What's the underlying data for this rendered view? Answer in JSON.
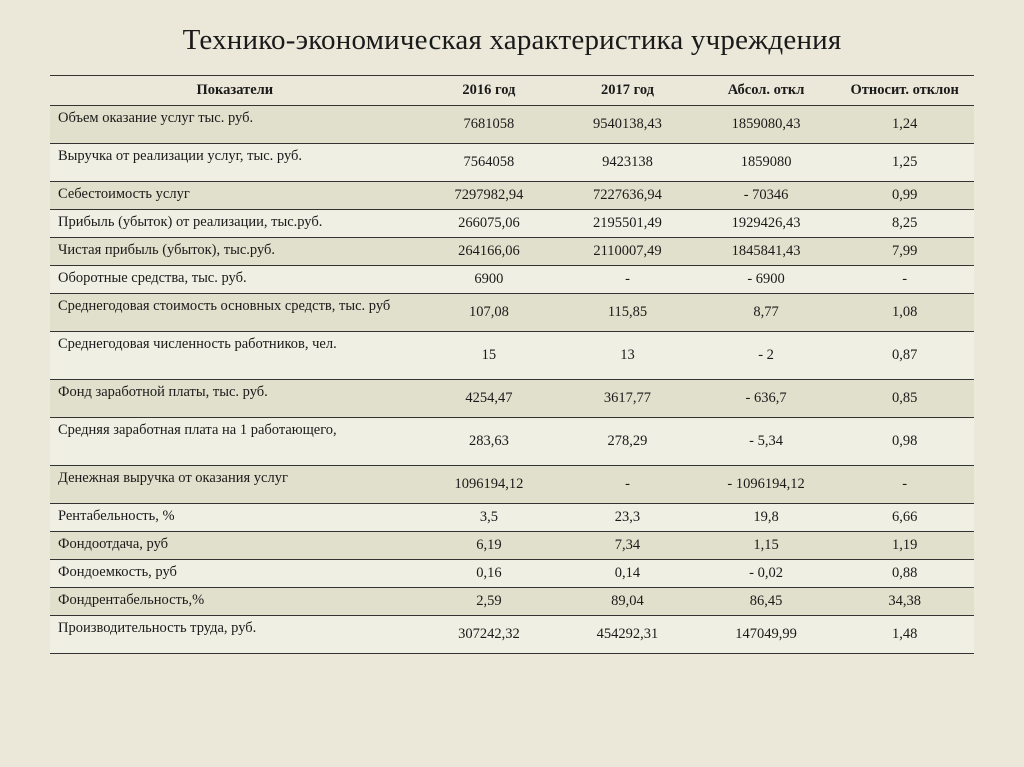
{
  "title": "Технико-экономическая характеристика учреждения",
  "table": {
    "columns": [
      "Показатели",
      "2016 год",
      "2017 год",
      "Абсол. откл",
      "Относит. отклон"
    ],
    "rows": [
      {
        "h": "h-med",
        "cells": [
          "Объем оказание услуг тыс. руб.",
          "7681058",
          "9540138,43",
          "1859080,43",
          "1,24"
        ]
      },
      {
        "h": "h-med",
        "cells": [
          "Выручка от реализации услуг, тыс. руб.",
          "7564058",
          "9423138",
          "1859080",
          "1,25"
        ]
      },
      {
        "h": "h-nar",
        "cells": [
          "Себестоимость  услуг",
          "7297982,94",
          "7227636,94",
          "- 70346",
          "0,99"
        ]
      },
      {
        "h": "h-nar",
        "cells": [
          "Прибыль (убыток) от реализации, тыс.руб.",
          "266075,06",
          "2195501,49",
          "1929426,43",
          "8,25"
        ]
      },
      {
        "h": "h-nar",
        "cells": [
          "Чистая прибыль (убыток), тыс.руб.",
          "264166,06",
          "2110007,49",
          "1845841,43",
          "7,99"
        ]
      },
      {
        "h": "h-nar",
        "cells": [
          "Оборотные средства, тыс. руб.",
          "6900",
          "-",
          "- 6900",
          "-"
        ]
      },
      {
        "h": "h-med",
        "cells": [
          "Среднегодовая стоимость основных средств, тыс. руб",
          "107,08",
          "115,85",
          "8,77",
          "1,08"
        ]
      },
      {
        "h": "h-tall",
        "cells": [
          "Среднегодовая численность работников, чел.",
          "15",
          "13",
          "- 2",
          "0,87"
        ]
      },
      {
        "h": "h-med",
        "cells": [
          "Фонд заработной платы, тыс. руб.",
          "4254,47",
          "3617,77",
          "- 636,7",
          "0,85"
        ]
      },
      {
        "h": "h-tall",
        "cells": [
          "Средняя заработная плата на 1 работающего,",
          "283,63",
          "278,29",
          "- 5,34",
          "0,98"
        ]
      },
      {
        "h": "h-med",
        "cells": [
          "Денежная выручка от оказания услуг",
          "1096194,12",
          "-",
          "- 1096194,12",
          "-"
        ]
      },
      {
        "h": "h-nar",
        "cells": [
          "Рентабельность, %",
          "3,5",
          "23,3",
          "19,8",
          "6,66"
        ]
      },
      {
        "h": "h-nar",
        "cells": [
          "Фондоотдача, руб",
          "6,19",
          "7,34",
          "1,15",
          "1,19"
        ]
      },
      {
        "h": "h-nar",
        "cells": [
          "Фондоемкость, руб",
          "0,16",
          "0,14",
          "- 0,02",
          "0,88"
        ]
      },
      {
        "h": "h-nar",
        "cells": [
          "Фондрентабельность,%",
          "2,59",
          "89,04",
          "86,45",
          "34,38"
        ]
      },
      {
        "h": "h-med",
        "cells": [
          "Производительность труда, руб.",
          "307242,32",
          "454292,31",
          "147049,99",
          "1,48"
        ]
      }
    ],
    "col_widths": [
      "40%",
      "15%",
      "15%",
      "15%",
      "15%"
    ],
    "header_fontsize": 14.5,
    "body_fontsize": 14.5,
    "title_fontsize": 29,
    "background_color": "#ebe8d9",
    "row_odd_color": "#e1e0cc",
    "row_even_color": "#f0efe3",
    "border_color": "#333333",
    "text_color": "#1a1a1a"
  }
}
